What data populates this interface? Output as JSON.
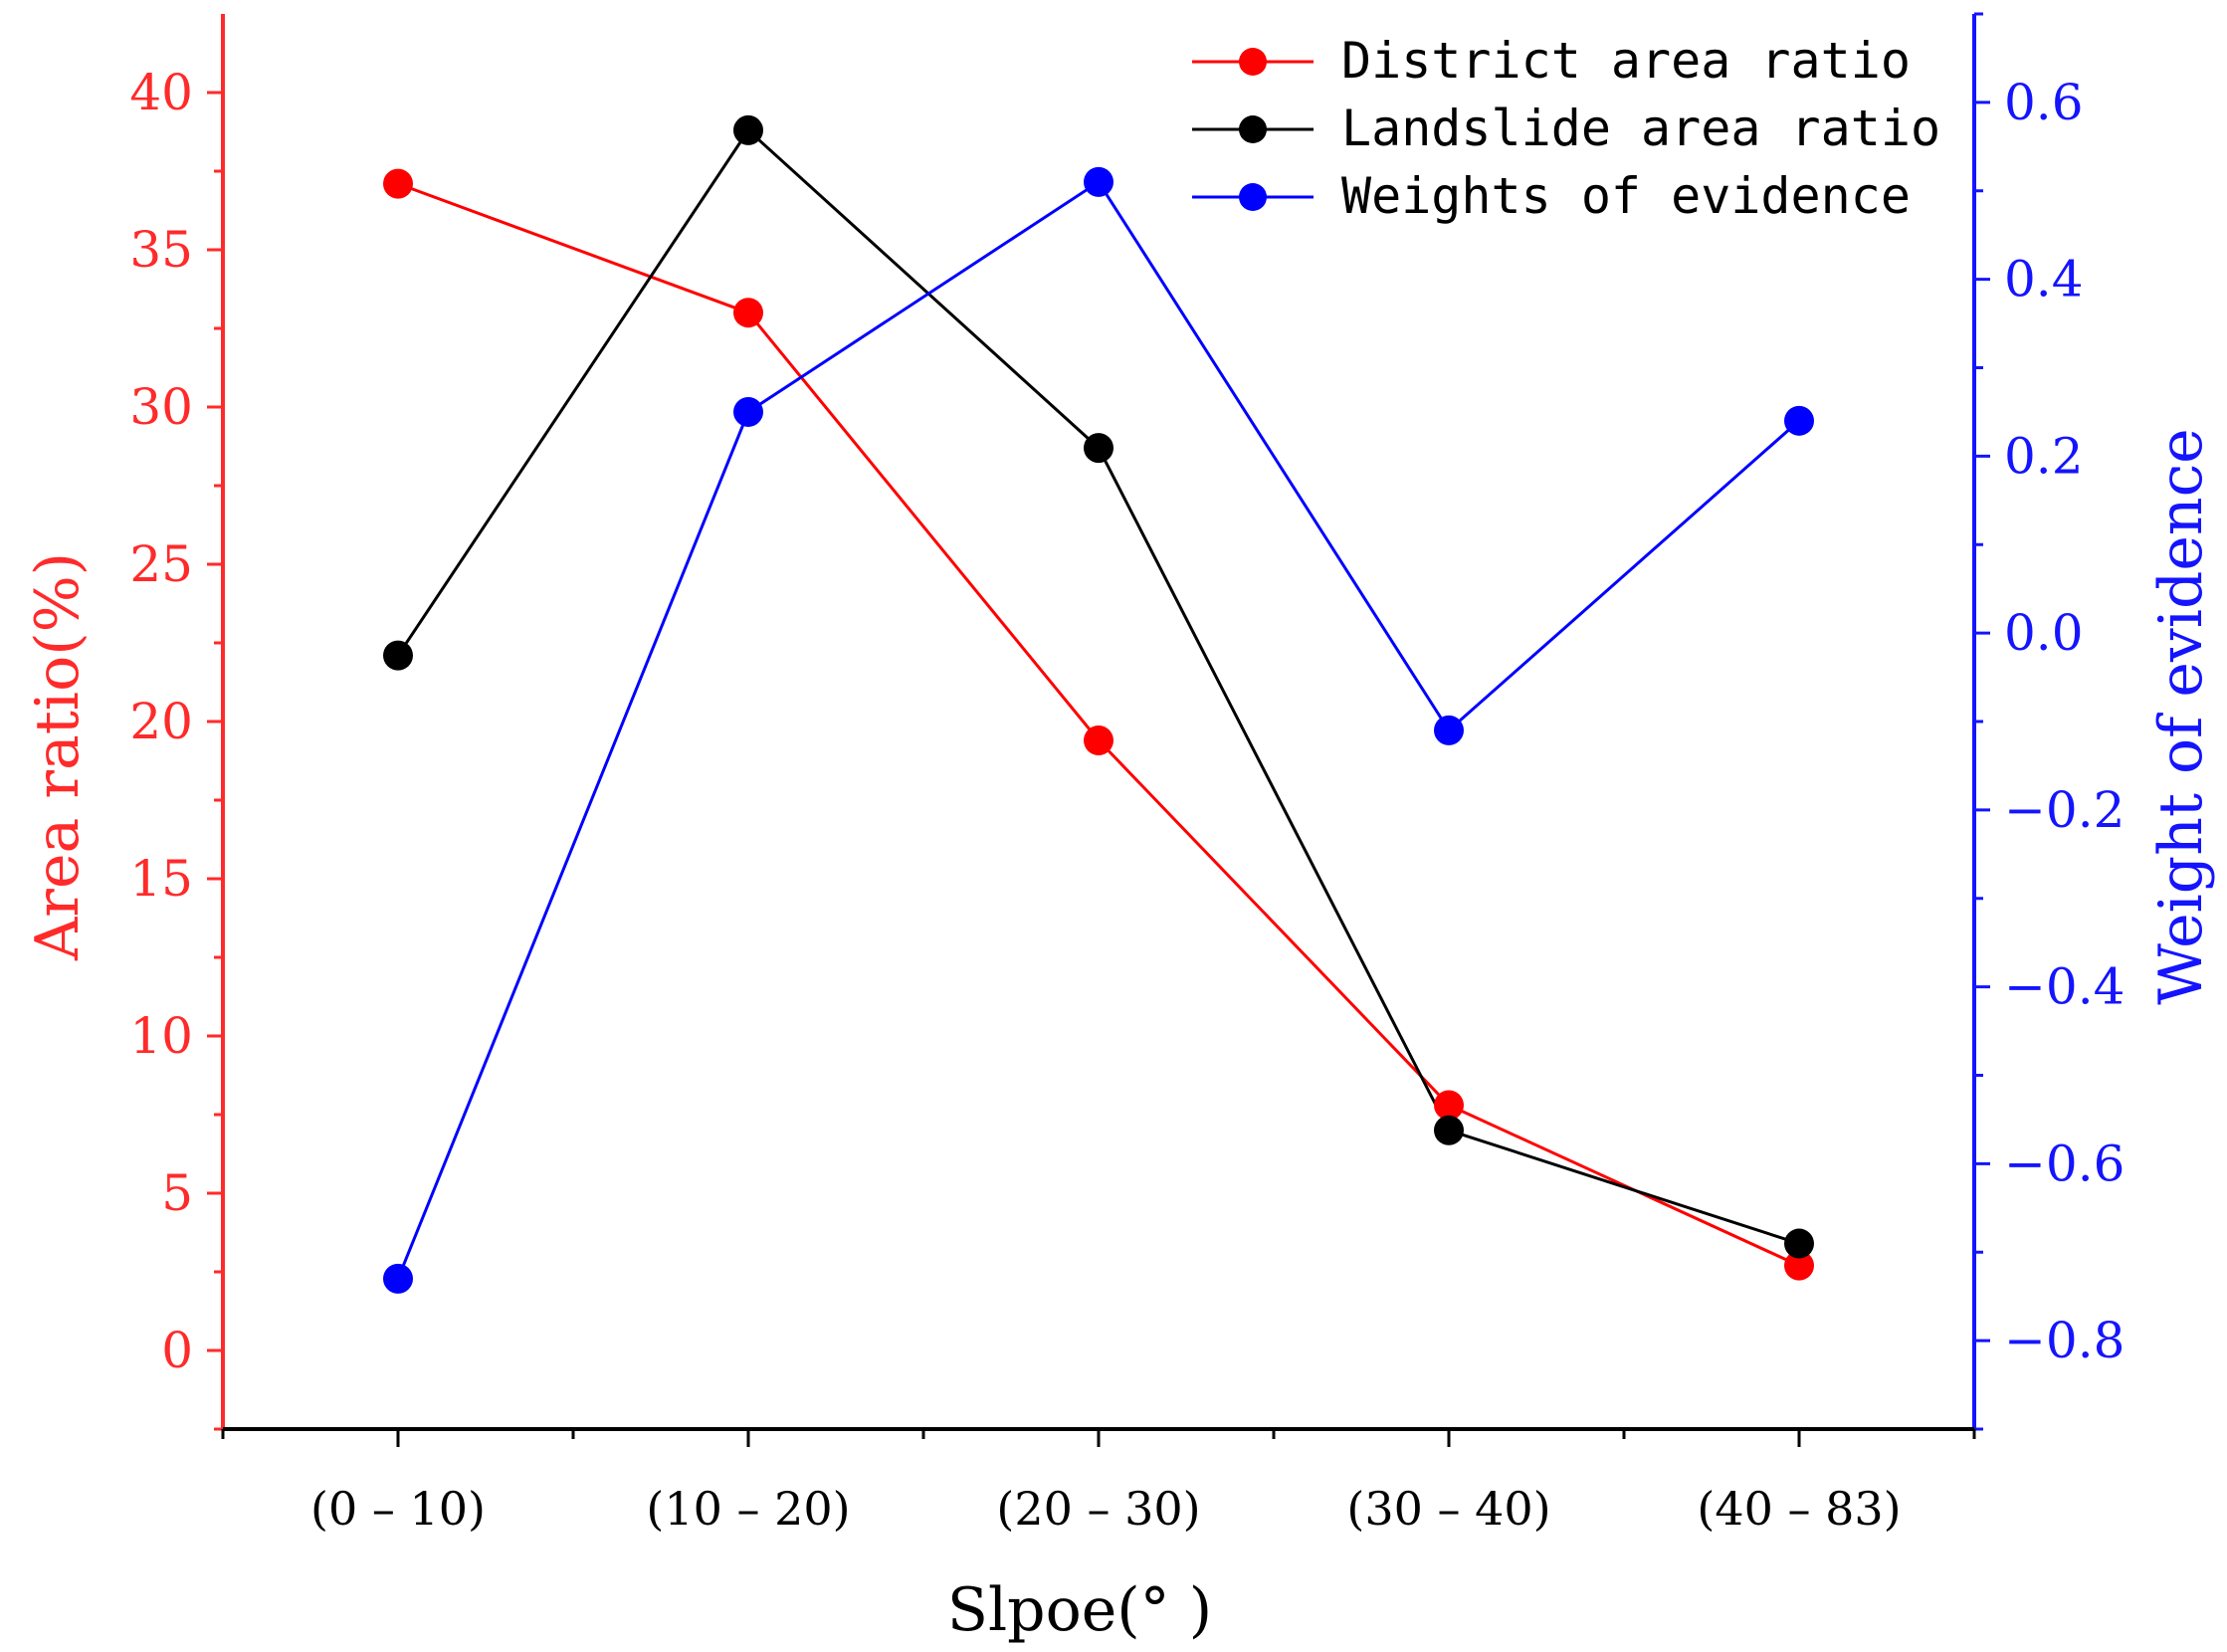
{
  "colors": {
    "left_axis": "#ff2a2a",
    "right_axis": "#1414ff",
    "bottom_axis": "#000000",
    "district": "#ff0000",
    "landslide": "#000000",
    "weights": "#0000ff"
  },
  "chart_data": {
    "type": "line",
    "xlabel": "Slpoe(° )",
    "ylabel": "Area ratio(%)",
    "y2label": "Weight of evidence",
    "categories": [
      "(0 – 10)",
      "(10 – 20)",
      "(20 – 30)",
      "(30 – 40)",
      "(40 – 83)"
    ],
    "ylim": [
      -2.5,
      42.5
    ],
    "y2lim": [
      -0.9,
      0.7
    ],
    "y_ticks": [
      "0",
      "5",
      "10",
      "15",
      "20",
      "25",
      "30",
      "35",
      "40"
    ],
    "y2_ticks": [
      "−0.8",
      "−0.6",
      "−0.4",
      "−0.2",
      "0.0",
      "0.2",
      "0.4",
      "0.6"
    ],
    "legend_position": "top-right",
    "grid": false,
    "series": [
      {
        "name": "District area ratio",
        "axis": "left",
        "color": "#ff0000",
        "values": [
          37.1,
          33.0,
          19.4,
          7.8,
          2.7
        ]
      },
      {
        "name": "Landslide area ratio",
        "axis": "left",
        "color": "#000000",
        "values": [
          22.1,
          38.8,
          28.7,
          7.0,
          3.4
        ]
      },
      {
        "name": "Weights of evidence",
        "axis": "right",
        "color": "#0000ff",
        "values": [
          -0.73,
          0.25,
          0.51,
          -0.11,
          0.24
        ]
      }
    ]
  }
}
